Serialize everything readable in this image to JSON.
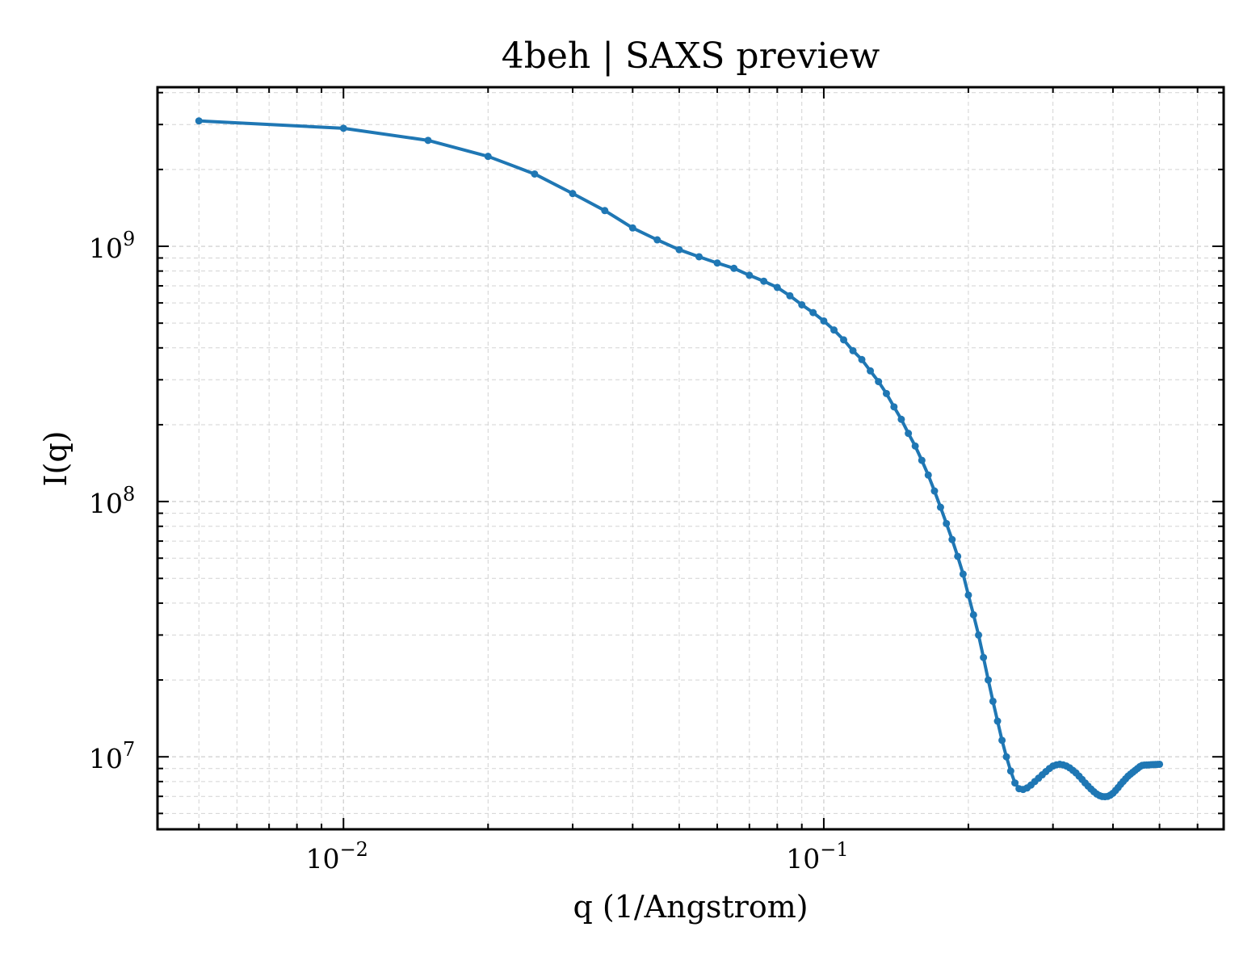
{
  "chart_data": {
    "type": "line",
    "title": "4beh | SAXS preview",
    "xlabel": "q (1/Angstrom)",
    "ylabel": "I(q)",
    "xscale": "log",
    "yscale": "log",
    "xlim": [
      0.0041,
      0.68
    ],
    "ylim": [
      5200000,
      4200000000
    ],
    "grid": true,
    "x_ticks": [
      {
        "value": 0.01,
        "base": "10",
        "exp": "−2"
      },
      {
        "value": 0.1,
        "base": "10",
        "exp": "−1"
      }
    ],
    "y_ticks": [
      {
        "value": 10000000,
        "base": "10",
        "exp": "7"
      },
      {
        "value": 100000000,
        "base": "10",
        "exp": "8"
      },
      {
        "value": 1000000000,
        "base": "10",
        "exp": "9"
      }
    ],
    "colors": {
      "series": "#1f77b4",
      "grid": "#d3d3d3",
      "axes": "#000000"
    },
    "series": [
      {
        "x": [
          0.005,
          0.01,
          0.015,
          0.02,
          0.025,
          0.03,
          0.035,
          0.04,
          0.045,
          0.05,
          0.055,
          0.06,
          0.065,
          0.07,
          0.075,
          0.08,
          0.085,
          0.09,
          0.095,
          0.1,
          0.105,
          0.11,
          0.115,
          0.12,
          0.125,
          0.13,
          0.135,
          0.14,
          0.145,
          0.15,
          0.155,
          0.16,
          0.165,
          0.17,
          0.175,
          0.18,
          0.185,
          0.19,
          0.195,
          0.2,
          0.205,
          0.21,
          0.215,
          0.22,
          0.225,
          0.23,
          0.235,
          0.24,
          0.245,
          0.25,
          0.255,
          0.26,
          0.265,
          0.27,
          0.275,
          0.28,
          0.285,
          0.29,
          0.295,
          0.3,
          0.305,
          0.31,
          0.315,
          0.32,
          0.325,
          0.33,
          0.335,
          0.34,
          0.345,
          0.35,
          0.355,
          0.36,
          0.365,
          0.37,
          0.375,
          0.38,
          0.385,
          0.39,
          0.395,
          0.4,
          0.405,
          0.41,
          0.415,
          0.42,
          0.425,
          0.43,
          0.435,
          0.44,
          0.445,
          0.45,
          0.455,
          0.46,
          0.465,
          0.47,
          0.475,
          0.48,
          0.485,
          0.49,
          0.495,
          0.5
        ],
        "y": [
          3100000000,
          2900000000,
          2600000000,
          2250000000,
          1920000000,
          1610000000,
          1380000000,
          1180000000,
          1060000000,
          970000000,
          910000000,
          860000000,
          820000000,
          770000000,
          730000000,
          690000000,
          640000000,
          590000000,
          550000000,
          510000000,
          470000000,
          430000000,
          390000000,
          360000000,
          325000000,
          295000000,
          265000000,
          235000000,
          210000000,
          185000000,
          165000000,
          145000000,
          127000000,
          110000000,
          95000000,
          82000000,
          71000000,
          61000000,
          52000000,
          43000000,
          36000000,
          30000000,
          24500000,
          20000000,
          16500000,
          13800000,
          11600000,
          10000000,
          8800000,
          7900000,
          7500000,
          7450000,
          7550000,
          7750000,
          8000000,
          8250000,
          8500000,
          8750000,
          9000000,
          9200000,
          9300000,
          9350000,
          9300000,
          9200000,
          9050000,
          8850000,
          8650000,
          8400000,
          8150000,
          7900000,
          7680000,
          7480000,
          7300000,
          7150000,
          7050000,
          6990000,
          6980000,
          7000000,
          7080000,
          7200000,
          7380000,
          7580000,
          7800000,
          8000000,
          8200000,
          8400000,
          8550000,
          8700000,
          8850000,
          9000000,
          9150000,
          9250000,
          9280000,
          9290000,
          9300000,
          9310000,
          9320000,
          9330000,
          9340000,
          9350000
        ]
      }
    ]
  }
}
